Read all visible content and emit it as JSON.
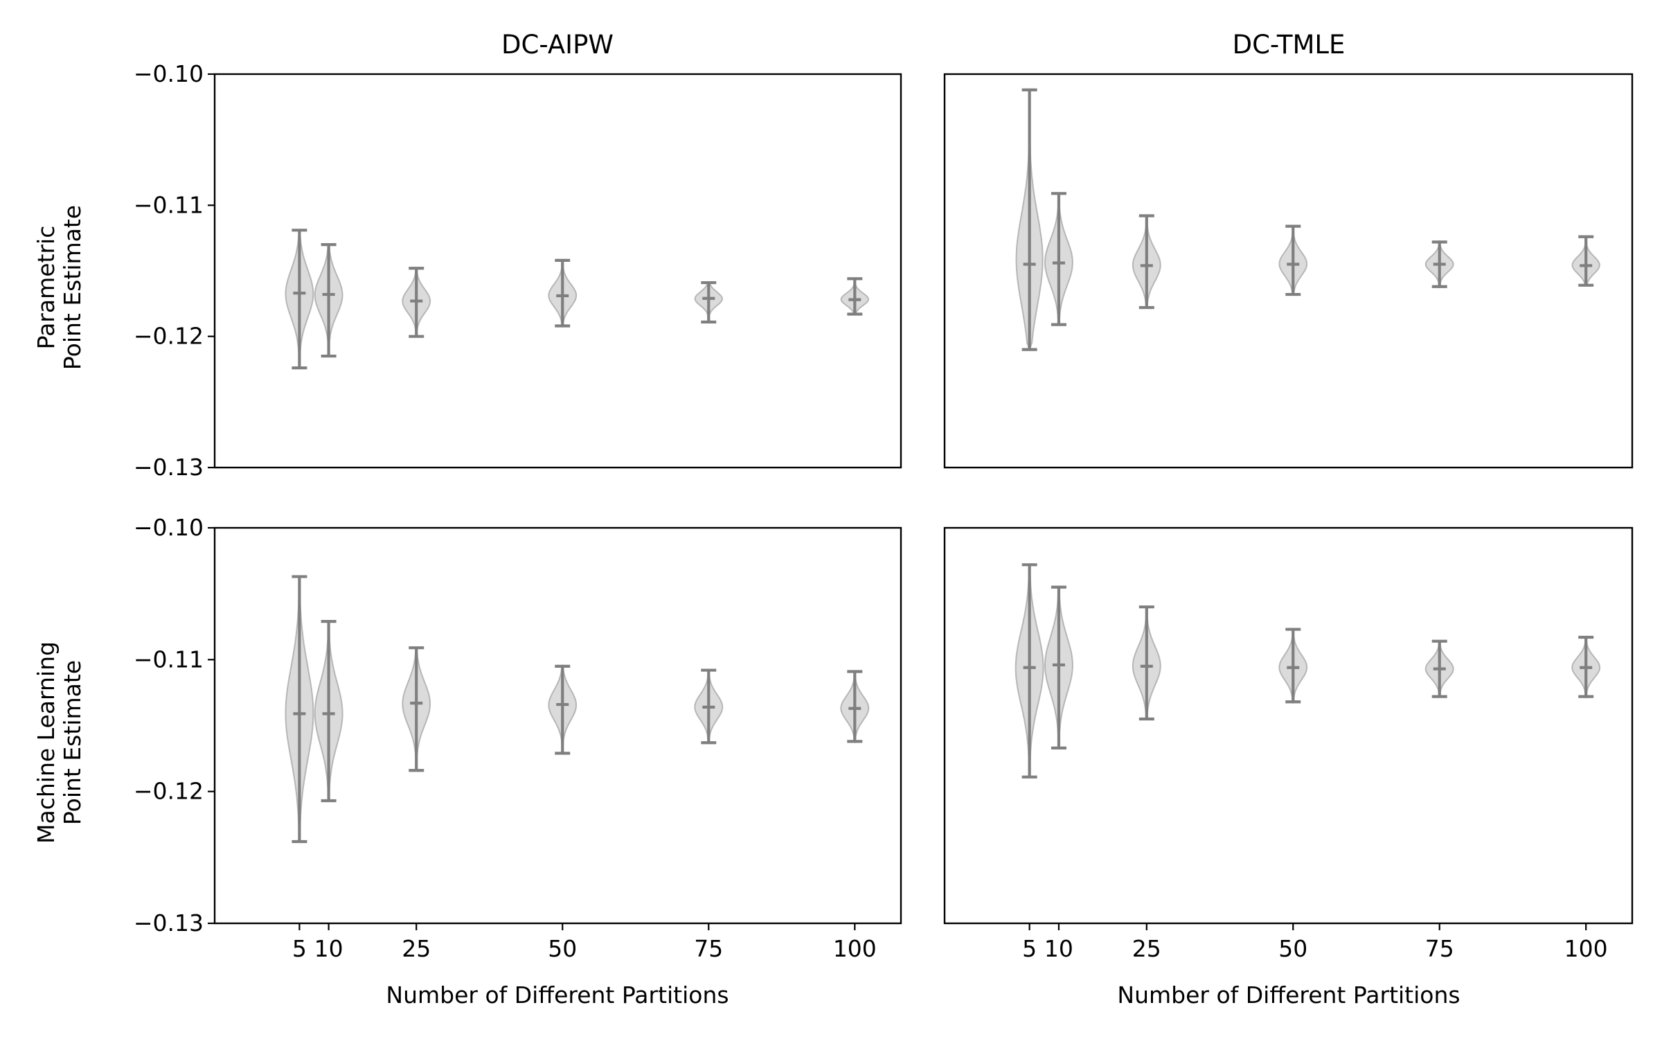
{
  "figure": {
    "column_titles": [
      "DC-AIPW",
      "DC-TMLE"
    ],
    "row_labels": [
      [
        "Parametric",
        "Point Estimate"
      ],
      [
        "Machine Learning",
        "Point Estimate"
      ]
    ],
    "xlabel": "Number of Different Partitions",
    "y_tick_labels": [
      "−0.10",
      "−0.11",
      "−0.12",
      "−0.13"
    ],
    "x_tick_labels": [
      "5",
      "10",
      "25",
      "50",
      "75",
      "100"
    ],
    "colors": {
      "violin_fill": "#bdbdbd",
      "violin_line": "#7f7f7f",
      "axes": "#000000"
    }
  },
  "chart_data": [
    {
      "type": "violin",
      "title": "DC-AIPW",
      "ylabel": "Parametric\nPoint Estimate",
      "xlabel": "",
      "categories": [
        5,
        10,
        25,
        50,
        75,
        100
      ],
      "ylim": [
        -0.13,
        -0.1
      ],
      "yticks": [
        -0.13,
        -0.12,
        -0.11,
        -0.1
      ],
      "violins": [
        {
          "x": 5,
          "min": -0.1224,
          "max": -0.1119,
          "median": -0.1167
        },
        {
          "x": 10,
          "min": -0.1215,
          "max": -0.113,
          "median": -0.1168
        },
        {
          "x": 25,
          "min": -0.12,
          "max": -0.1148,
          "median": -0.1173
        },
        {
          "x": 50,
          "min": -0.1192,
          "max": -0.1142,
          "median": -0.1169
        },
        {
          "x": 75,
          "min": -0.1189,
          "max": -0.1159,
          "median": -0.1171
        },
        {
          "x": 100,
          "min": -0.1183,
          "max": -0.1156,
          "median": -0.1172
        }
      ]
    },
    {
      "type": "violin",
      "title": "DC-TMLE",
      "ylabel": "",
      "xlabel": "",
      "categories": [
        5,
        10,
        25,
        50,
        75,
        100
      ],
      "ylim": [
        -0.13,
        -0.1
      ],
      "yticks": [],
      "violins": [
        {
          "x": 5,
          "min": -0.121,
          "max": -0.1012,
          "median": -0.1145
        },
        {
          "x": 10,
          "min": -0.1191,
          "max": -0.1091,
          "median": -0.1144
        },
        {
          "x": 25,
          "min": -0.1178,
          "max": -0.1108,
          "median": -0.1146
        },
        {
          "x": 50,
          "min": -0.1168,
          "max": -0.1116,
          "median": -0.1145
        },
        {
          "x": 75,
          "min": -0.1162,
          "max": -0.1128,
          "median": -0.1145
        },
        {
          "x": 100,
          "min": -0.1161,
          "max": -0.1124,
          "median": -0.1146
        }
      ]
    },
    {
      "type": "violin",
      "title": "",
      "ylabel": "Machine Learning\nPoint Estimate",
      "xlabel": "Number of Different Partitions",
      "categories": [
        5,
        10,
        25,
        50,
        75,
        100
      ],
      "ylim": [
        -0.13,
        -0.1
      ],
      "yticks": [
        -0.13,
        -0.12,
        -0.11,
        -0.1
      ],
      "violins": [
        {
          "x": 5,
          "min": -0.1238,
          "max": -0.1037,
          "median": -0.1141
        },
        {
          "x": 10,
          "min": -0.1207,
          "max": -0.1071,
          "median": -0.1141
        },
        {
          "x": 25,
          "min": -0.1184,
          "max": -0.1091,
          "median": -0.1133
        },
        {
          "x": 50,
          "min": -0.1171,
          "max": -0.1105,
          "median": -0.1134
        },
        {
          "x": 75,
          "min": -0.1163,
          "max": -0.1108,
          "median": -0.1136
        },
        {
          "x": 100,
          "min": -0.1162,
          "max": -0.1109,
          "median": -0.1137
        }
      ]
    },
    {
      "type": "violin",
      "title": "",
      "ylabel": "",
      "xlabel": "Number of Different Partitions",
      "categories": [
        5,
        10,
        25,
        50,
        75,
        100
      ],
      "ylim": [
        -0.13,
        -0.1
      ],
      "yticks": [],
      "violins": [
        {
          "x": 5,
          "min": -0.1189,
          "max": -0.1028,
          "median": -0.1106
        },
        {
          "x": 10,
          "min": -0.1167,
          "max": -0.1045,
          "median": -0.1104
        },
        {
          "x": 25,
          "min": -0.1145,
          "max": -0.106,
          "median": -0.1105
        },
        {
          "x": 50,
          "min": -0.1132,
          "max": -0.1077,
          "median": -0.1106
        },
        {
          "x": 75,
          "min": -0.1128,
          "max": -0.1086,
          "median": -0.1107
        },
        {
          "x": 100,
          "min": -0.1128,
          "max": -0.1083,
          "median": -0.1106
        }
      ]
    }
  ]
}
